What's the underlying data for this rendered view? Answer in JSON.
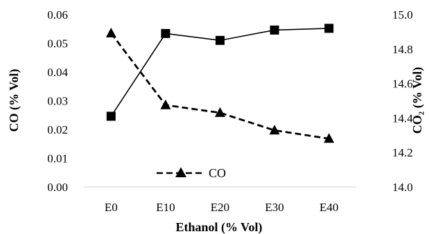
{
  "chart_data": {
    "type": "line",
    "categories": [
      "E0",
      "E10",
      "E20",
      "E30",
      "E40"
    ],
    "xlabel": "Ethanol (% Vol)",
    "ylabel_left": "CO (% Vol)",
    "ylabel_right": "CO₂ (% Vol)",
    "y_left": {
      "lim": [
        0.0,
        0.06
      ],
      "ticks": [
        0.0,
        0.01,
        0.02,
        0.03,
        0.04,
        0.05,
        0.06
      ],
      "tick_labels": [
        "0.00",
        "0.01",
        "0.02",
        "0.03",
        "0.04",
        "0.05",
        "0.06"
      ]
    },
    "y_right": {
      "lim": [
        14.0,
        15.0
      ],
      "ticks": [
        14.0,
        14.2,
        14.4,
        14.6,
        14.8,
        15.0
      ],
      "tick_labels": [
        "14.0",
        "14.2",
        "14.4",
        "14.6",
        "14.8",
        "15.0"
      ]
    },
    "series": [
      {
        "name": "CO",
        "axis": "left",
        "marker": "triangle",
        "line_style": "dashed",
        "values": [
          0.0535,
          0.0285,
          0.0258,
          0.0197,
          0.0168
        ]
      },
      {
        "name": "",
        "axis": "right",
        "marker": "square",
        "line_style": "solid",
        "values": [
          14.41,
          14.89,
          14.85,
          14.91,
          14.92
        ]
      }
    ],
    "legend": {
      "position": "bottom-center",
      "shows": [
        "CO"
      ]
    },
    "grid": false,
    "colors": {
      "line": "#000000",
      "axis": "#d9d9d9"
    }
  }
}
